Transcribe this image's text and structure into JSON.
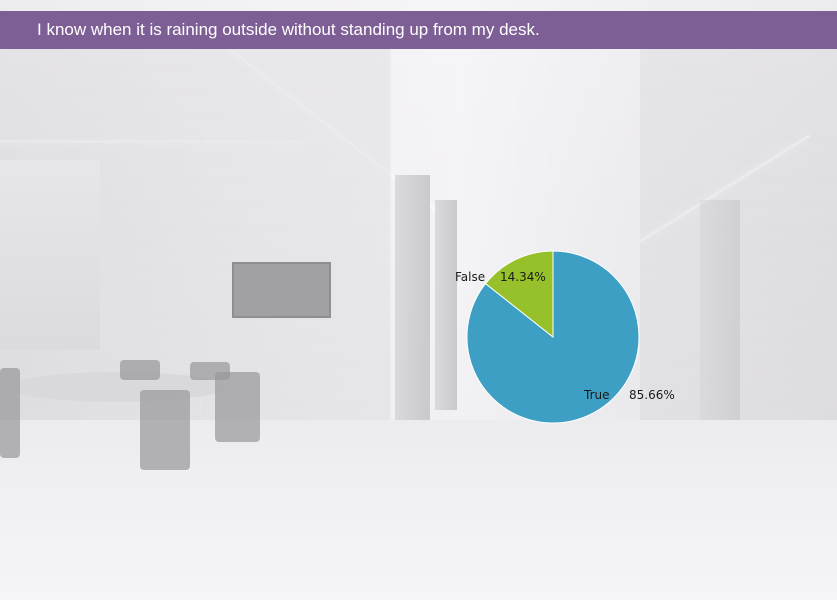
{
  "header": {
    "question": "I know when it is raining outside without standing up from my desk."
  },
  "chart_data": {
    "type": "pie",
    "categories": [
      "True",
      "False"
    ],
    "values": [
      85.66,
      14.34
    ],
    "value_labels": [
      "85.66%",
      "14.34%"
    ],
    "colors": [
      "#3e9fc4",
      "#96c12a"
    ],
    "legend": "none",
    "grid": false
  }
}
